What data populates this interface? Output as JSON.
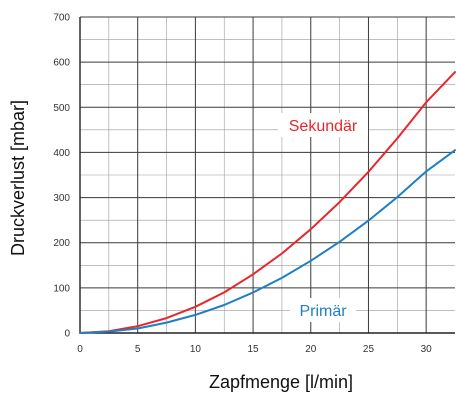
{
  "chart_data": {
    "type": "line",
    "title": "",
    "xlabel": "Zapfmenge [l/min]",
    "ylabel": "Druckverlust [mbar]",
    "xlim": [
      0,
      32.5
    ],
    "ylim": [
      0,
      700
    ],
    "x_ticks": [
      0,
      5,
      10,
      15,
      20,
      25,
      30
    ],
    "y_ticks": [
      0,
      100,
      200,
      300,
      400,
      500,
      600,
      700
    ],
    "grid": true,
    "legend": "none",
    "series": [
      {
        "name": "Sekundär",
        "color": "#e8262c",
        "x": [
          0,
          2.5,
          5,
          7.5,
          10,
          12.5,
          15,
          17.5,
          20,
          22.5,
          25,
          27.5,
          30,
          32.5
        ],
        "y": [
          0,
          4,
          15,
          33,
          58,
          90,
          130,
          176,
          230,
          290,
          357,
          431,
          511,
          578
        ]
      },
      {
        "name": "Primär",
        "color": "#1f7fc4",
        "x": [
          0,
          2.5,
          5,
          7.5,
          10,
          12.5,
          15,
          17.5,
          20,
          22.5,
          25,
          27.5,
          30,
          32.5
        ],
        "y": [
          0,
          3,
          10,
          23,
          40,
          62,
          90,
          122,
          160,
          202,
          249,
          301,
          358,
          405
        ]
      }
    ]
  }
}
